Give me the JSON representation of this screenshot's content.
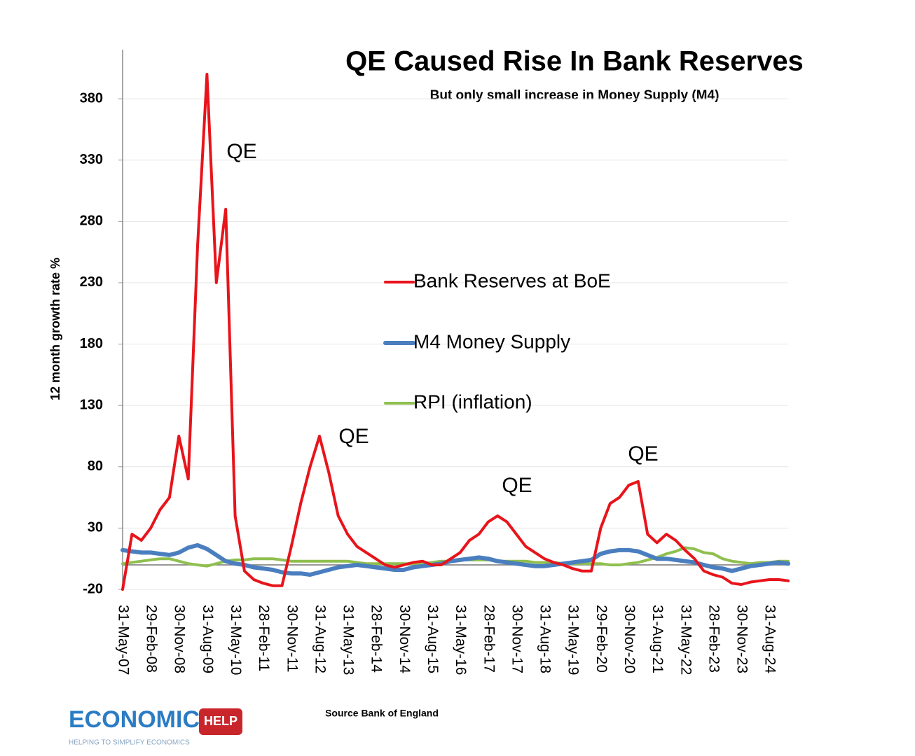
{
  "chart_data": {
    "type": "line",
    "title": "QE Caused Rise In Bank Reserves",
    "subtitle": "But only small increase in Money Supply (M4)",
    "y_label": "12 month growth rate %",
    "source": "Source Bank of England",
    "logo": "ECONOMICS",
    "logo_badge": "HELP",
    "logo_tagline": "HELPING TO SIMPLIFY ECONOMICS",
    "annotations": [
      "QE",
      "QE",
      "QE",
      "QE"
    ],
    "categories": [
      "31-May-07",
      null,
      null,
      "29-Feb-08",
      null,
      null,
      "30-Nov-08",
      null,
      null,
      "31-Aug-09",
      null,
      null,
      "31-May-10",
      null,
      null,
      "28-Feb-11",
      null,
      null,
      "30-Nov-11",
      null,
      null,
      "31-Aug-12",
      null,
      null,
      "31-May-13",
      null,
      null,
      "28-Feb-14",
      null,
      null,
      "30-Nov-14",
      null,
      null,
      "31-Aug-15",
      null,
      null,
      "31-May-16",
      null,
      null,
      "28-Feb-17",
      null,
      null,
      "30-Nov-17",
      null,
      null,
      "31-Aug-18",
      null,
      null,
      "31-May-19",
      null,
      null,
      "29-Feb-20",
      null,
      null,
      "30-Nov-20",
      null,
      null,
      "31-Aug-21",
      null,
      null,
      "31-May-22",
      null,
      null,
      "28-Feb-23",
      null,
      null,
      "30-Nov-23",
      null,
      null,
      "31-Aug-24",
      null,
      null
    ],
    "series": [
      {
        "name": "Bank Reserves at BoE",
        "color": "#e8141b",
        "width": 4,
        "values": [
          -20,
          25,
          20,
          30,
          45,
          55,
          105,
          70,
          260,
          400,
          230,
          290,
          40,
          -5,
          -12,
          -15,
          -17,
          -17,
          15,
          50,
          80,
          105,
          75,
          40,
          25,
          15,
          10,
          5,
          0,
          -2,
          0,
          2,
          3,
          0,
          0,
          5,
          10,
          20,
          25,
          35,
          40,
          35,
          25,
          15,
          10,
          5,
          2,
          0,
          -3,
          -5,
          -5,
          30,
          50,
          55,
          65,
          68,
          25,
          18,
          25,
          20,
          12,
          5,
          -5,
          -8,
          -10,
          -15,
          -16,
          -14,
          -13,
          -12,
          -12,
          -13
        ]
      },
      {
        "name": "M4 Money Supply",
        "color": "#4a7ebf",
        "width": 6,
        "values": [
          12,
          11,
          10,
          10,
          9,
          8,
          10,
          14,
          16,
          13,
          8,
          3,
          1,
          0,
          -2,
          -3,
          -4,
          -6,
          -7,
          -7,
          -8,
          -6,
          -4,
          -2,
          -1,
          0,
          -1,
          -2,
          -3,
          -4,
          -4,
          -2,
          -1,
          0,
          1,
          3,
          4,
          5,
          6,
          5,
          3,
          2,
          1,
          0,
          -1,
          -1,
          0,
          1,
          2,
          3,
          4,
          9,
          11,
          12,
          12,
          11,
          8,
          5,
          5,
          4,
          3,
          2,
          0,
          -2,
          -3,
          -5,
          -3,
          -1,
          0,
          1,
          2,
          1
        ]
      },
      {
        "name": "RPI (inflation)",
        "color": "#8fbf4f",
        "width": 4,
        "values": [
          1,
          2,
          3,
          4,
          5,
          5,
          3,
          1,
          0,
          -1,
          1,
          3,
          4,
          4,
          5,
          5,
          5,
          4,
          3,
          3,
          3,
          3,
          3,
          3,
          3,
          2,
          1,
          1,
          1,
          1,
          1,
          1,
          1,
          2,
          3,
          3,
          4,
          4,
          4,
          4,
          3,
          3,
          3,
          3,
          2,
          2,
          2,
          1,
          1,
          1,
          1,
          1,
          0,
          0,
          1,
          2,
          4,
          6,
          9,
          11,
          14,
          13,
          10,
          9,
          5,
          3,
          2,
          1,
          2,
          2,
          3,
          3
        ]
      }
    ],
    "ylim": [
      -20,
      420
    ],
    "yticks": [
      -20,
      30,
      80,
      130,
      180,
      230,
      280,
      330,
      380
    ],
    "grid": true
  }
}
